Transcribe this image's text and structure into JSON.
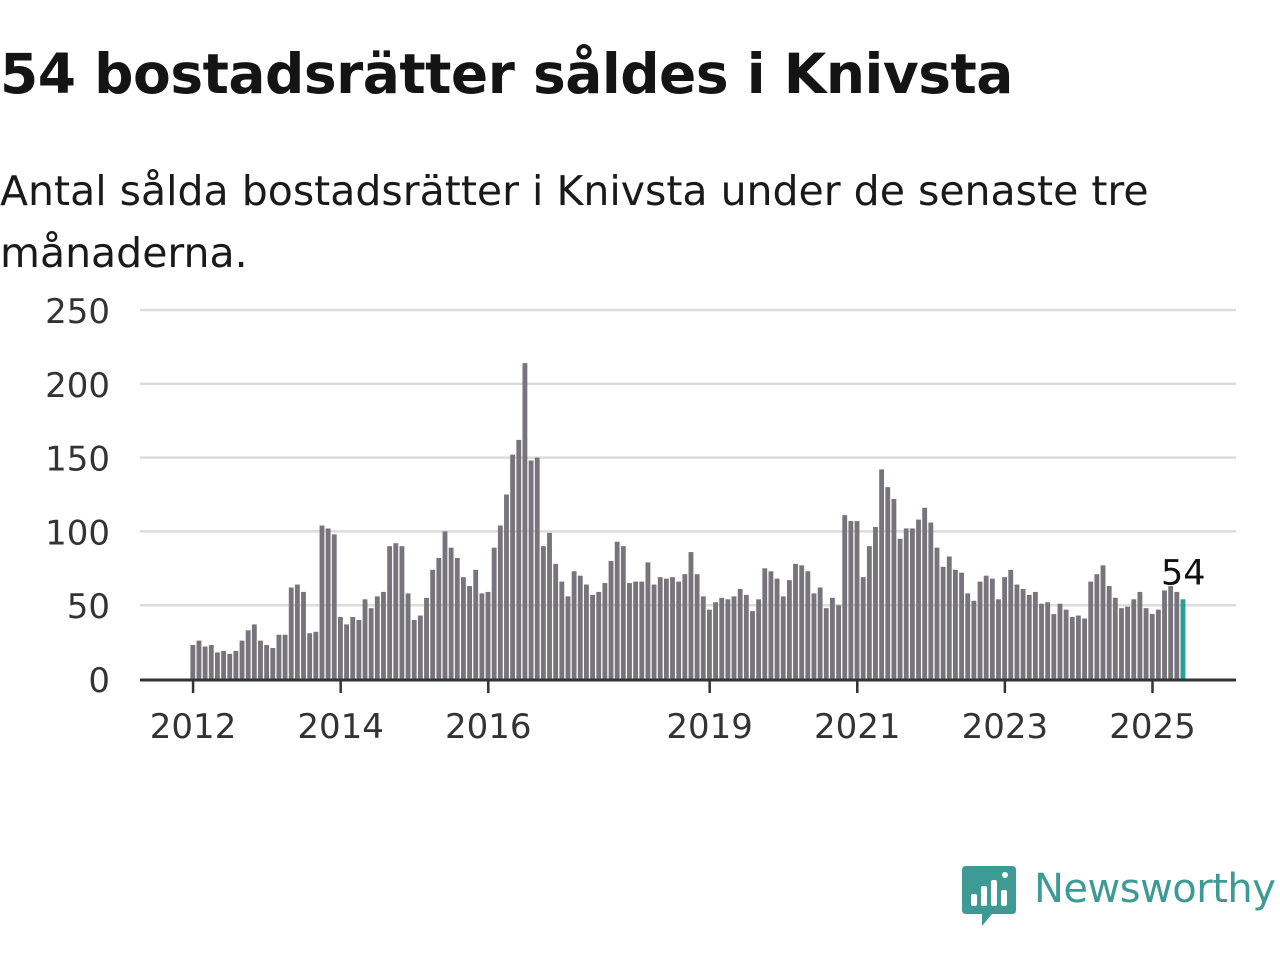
{
  "title": "54 bostadsrätter såldes i Knivsta",
  "subtitle": "Antal sålda bostadsrätter i Knivsta under de senaste tre månaderna.",
  "brand": {
    "name": "Newsworthy",
    "color": "#3e9a94",
    "icon": "bar-chart-speech-bubble-icon"
  },
  "chart_data": {
    "type": "bar",
    "x_unit": "month",
    "start": "2012-01",
    "end": "2025-06",
    "ylim": [
      0,
      250
    ],
    "y_ticks": [
      0,
      50,
      100,
      150,
      200,
      250
    ],
    "x_ticks": [
      "2012",
      "2014",
      "2016",
      "2019",
      "2021",
      "2023",
      "2025"
    ],
    "grid": true,
    "bar_color": "#77757b",
    "highlight_color": "#2a9d94",
    "highlight_last": true,
    "annotation": "54",
    "values": [
      23,
      26,
      22,
      23,
      18,
      19,
      17,
      19,
      26,
      33,
      37,
      26,
      23,
      21,
      30,
      30,
      62,
      64,
      59,
      31,
      32,
      104,
      102,
      98,
      42,
      37,
      42,
      40,
      54,
      48,
      56,
      59,
      90,
      92,
      90,
      58,
      40,
      43,
      55,
      74,
      82,
      100,
      89,
      82,
      69,
      63,
      74,
      58,
      59,
      89,
      104,
      125,
      152,
      162,
      214,
      148,
      150,
      90,
      99,
      78,
      66,
      56,
      73,
      70,
      64,
      57,
      59,
      65,
      80,
      93,
      90,
      65,
      66,
      66,
      79,
      64,
      69,
      68,
      69,
      66,
      71,
      86,
      71,
      56,
      47,
      52,
      55,
      54,
      56,
      61,
      57,
      46,
      54,
      75,
      73,
      68,
      56,
      67,
      78,
      77,
      73,
      58,
      62,
      48,
      55,
      50,
      111,
      107,
      107,
      69,
      90,
      103,
      142,
      130,
      122,
      95,
      102,
      102,
      108,
      116,
      106,
      89,
      76,
      83,
      74,
      72,
      58,
      53,
      66,
      70,
      68,
      54,
      69,
      74,
      64,
      61,
      57,
      59,
      51,
      52,
      44,
      51,
      47,
      42,
      43,
      41,
      66,
      71,
      77,
      63,
      55,
      48,
      49,
      54,
      59,
      48,
      44,
      47,
      60,
      63,
      59,
      54
    ]
  }
}
